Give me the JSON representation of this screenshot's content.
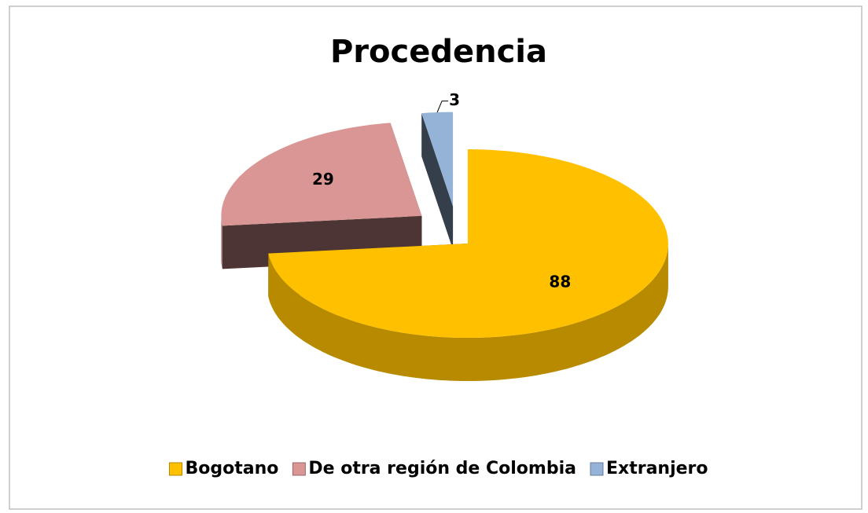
{
  "chart_data": {
    "type": "pie",
    "title": "Procedencia",
    "categories": [
      "Bogotano",
      "De otra región de Colombia",
      "Extranjero"
    ],
    "values": [
      88,
      29,
      3
    ],
    "colors": [
      "#ffc000",
      "#d99694",
      "#95b3d7"
    ],
    "legend": "bottom"
  }
}
